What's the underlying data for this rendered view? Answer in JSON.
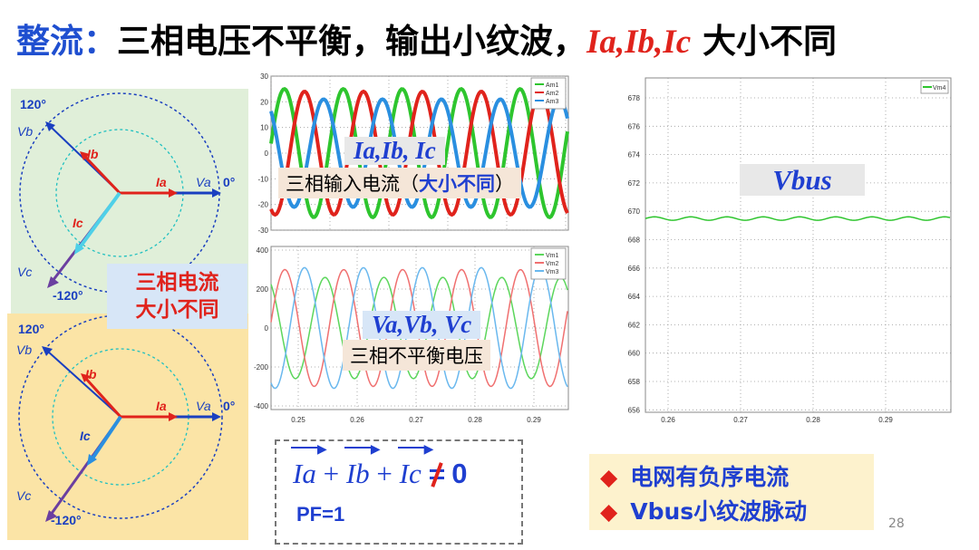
{
  "title": {
    "part1": "整流：",
    "part2": "三相电压不平衡，输出小纹波，",
    "part3": "Ia,Ib,Ic",
    "part4": " 大小不同"
  },
  "phasor_top": {
    "deg120": "120°",
    "deg0": "0°",
    "degm120": "-120°",
    "vb": "Vb",
    "va": "Va",
    "vc": "Vc",
    "ia": "Ia",
    "ib": "Ib",
    "ic": "Ic"
  },
  "phasor_bottom": {
    "deg120": "120°",
    "deg0": "0°",
    "degm120": "-120°",
    "vb": "Vb",
    "va": "Va",
    "vc": "Vc",
    "ia": "Ia",
    "ib": "Ib",
    "ic": "Ic"
  },
  "callout": {
    "line1": "三相电流",
    "line2": "大小不同"
  },
  "chart_current": {
    "y_ticks": [
      "30",
      "20",
      "10",
      "0",
      "-10",
      "-20",
      "-30"
    ],
    "legend": [
      "Am1",
      "Am2",
      "Am3"
    ],
    "formula": "Ia,Ib, Ic",
    "label": "三相输入电流（",
    "label_bold": "大小不同",
    "label_end": "）"
  },
  "chart_voltage": {
    "y_ticks": [
      "400",
      "200",
      "0",
      "-200",
      "-400"
    ],
    "x_ticks": [
      "0.25",
      "0.26",
      "0.27",
      "0.28",
      "0.29"
    ],
    "legend": [
      "Vm1",
      "Vm2",
      "Vm3"
    ],
    "formula": "Va,Vb, Vc",
    "label": "三相不平衡电压"
  },
  "chart_vbus": {
    "y_ticks": [
      "678",
      "676",
      "674",
      "672",
      "670",
      "668",
      "666",
      "664",
      "662",
      "660",
      "658",
      "656"
    ],
    "x_ticks": [
      "0.26",
      "0.27",
      "0.28",
      "0.29"
    ],
    "legend": [
      "Vm4"
    ],
    "formula": "Vbus"
  },
  "note": {
    "eq_ia": "Ia",
    "eq_ib": "Ib",
    "eq_ic": "Ic",
    "plus": "+",
    "eq_zero": "0",
    "pf": "PF=1"
  },
  "bullets": [
    "电网有负序电流",
    "Vbus小纹波脉动"
  ],
  "bullet_symbol": "◆",
  "page_number": "28",
  "colors": {
    "blue": "#1f4fd0",
    "red": "#e0231c",
    "green": "#2ec52e",
    "phase_blue": "#2a8fe0",
    "purple": "#6b3fa0",
    "cyan": "#4fd0e8",
    "panel_green": "#e0efd9",
    "panel_yellow": "#fbe4a6"
  }
}
